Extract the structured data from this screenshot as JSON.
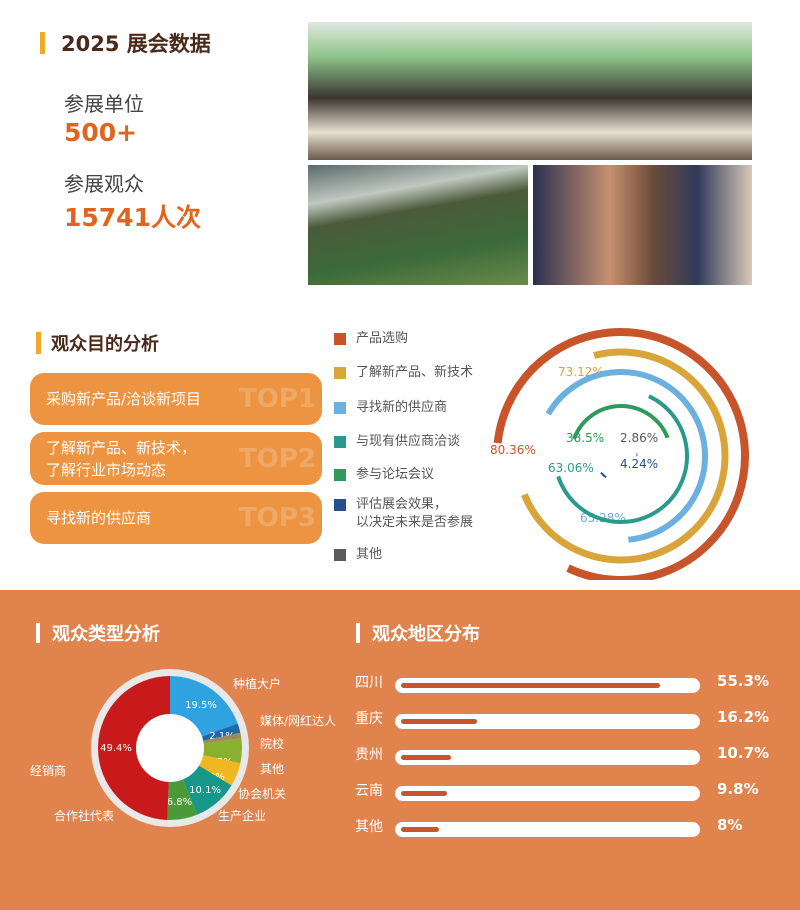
{
  "header": {
    "title": "2025 展会数据"
  },
  "stats": [
    {
      "label": "参展单位",
      "value": "500+"
    },
    {
      "label": "参展观众",
      "value": "15741人次"
    }
  ],
  "purpose": {
    "title": "观众目的分析",
    "top": [
      {
        "text": "采购新产品/洽谈新项目",
        "rank": "TOP1"
      },
      {
        "text": "了解新产品、新技术，\n了解行业市场动态",
        "rank": "TOP2"
      },
      {
        "text": "寻找新的供应商",
        "rank": "TOP3"
      }
    ]
  },
  "region_title": "观众地区分布",
  "type_title": "观众类型分析",
  "chart_data": [
    {
      "type": "radial-bar",
      "series": [
        {
          "name": "产品选购",
          "value": 80.36,
          "label": "80.36%",
          "color": "#c8542c"
        },
        {
          "name": "了解新产品、新技术",
          "value": 73.12,
          "label": "73.12%",
          "color": "#d9a43a"
        },
        {
          "name": "寻找新的供应商",
          "value": 65.28,
          "label": "65.28%",
          "color": "#6cb0e0"
        },
        {
          "name": "与现有供应商洽谈",
          "value": 63.06,
          "label": "63.06%",
          "color": "#2a9a8c"
        },
        {
          "name": "参与论坛会议",
          "value": 38.5,
          "label": "38.5%",
          "color": "#2f9a5a"
        },
        {
          "name": "评估展会效果，\n以决定未来是否参展",
          "value": 4.24,
          "label": "4.24%",
          "color": "#24508c"
        },
        {
          "name": "其他",
          "value": 2.86,
          "label": "2.86%",
          "color": "#5a5a5a"
        }
      ],
      "legend": "left"
    },
    {
      "type": "pie",
      "donut": true,
      "slices": [
        {
          "name": "种植大户",
          "value": 19.5,
          "label": "19.5%",
          "color": "#2ea3e0"
        },
        {
          "name": "媒体/网红达人",
          "value": 2.1,
          "label": "2.1%",
          "color": "#1c6aa8"
        },
        {
          "name": "院校",
          "value": 1.3,
          "label": "1.3%",
          "color": "#a08a5a"
        },
        {
          "name": "其他",
          "value": 5.5,
          "label": "5.5%",
          "color": "#8ab030"
        },
        {
          "name": "协会机关",
          "value": 5.3,
          "label": "5.3%",
          "color": "#f0b820"
        },
        {
          "name": "生产企业",
          "value": 10.1,
          "label": "10.1%",
          "color": "#17968a"
        },
        {
          "name": "合作社代表",
          "value": 6.8,
          "label": "6.8%",
          "color": "#4a9a3a"
        },
        {
          "name": "经销商",
          "value": 49.4,
          "label": "49.4%",
          "color": "#c81a1a"
        }
      ]
    },
    {
      "type": "bar",
      "orientation": "horizontal",
      "categories": [
        "四川",
        "重庆",
        "贵州",
        "云南",
        "其他"
      ],
      "values": [
        55.3,
        16.2,
        10.7,
        9.8,
        8
      ],
      "labels": [
        "55.3%",
        "16.2%",
        "10.7%",
        "9.8%",
        "8%"
      ]
    }
  ]
}
